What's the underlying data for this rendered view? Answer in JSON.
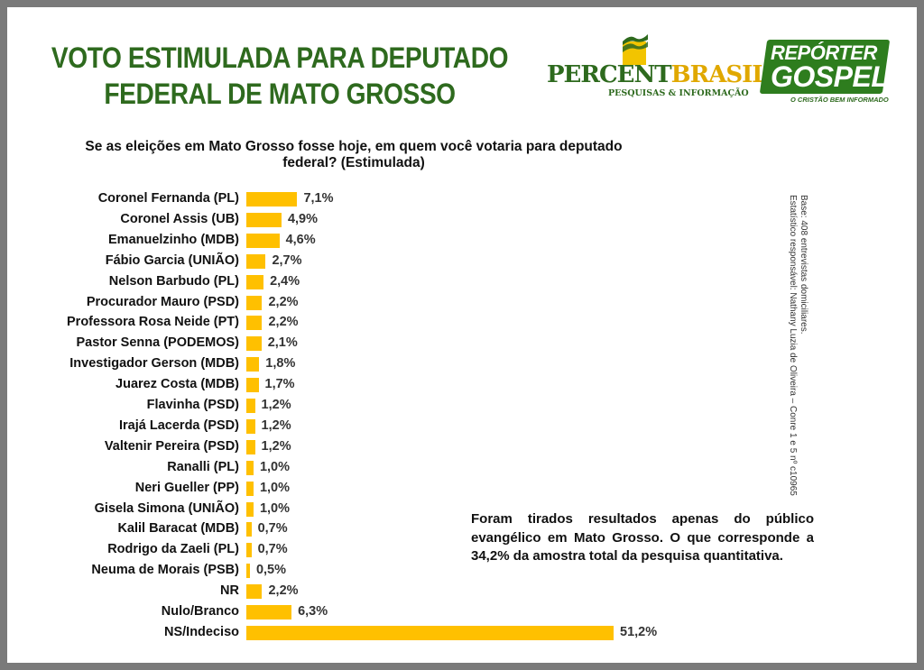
{
  "title": "VOTO ESTIMULADA PARA DEPUTADO FEDERAL DE MATO GROSSO",
  "logos": {
    "percent": {
      "name_green": "PERCENT",
      "name_yellow": "BRASIL",
      "reg": "®",
      "tagline": "PESQUISAS & INFORMAÇÃO"
    },
    "reporter": {
      "line1": "REPÓRTER",
      "line2": "GOSPEL",
      "tagline": "O CRISTÃO BEM INFORMADO"
    }
  },
  "note": "Foram tirados resultados apenas do público evangélico em Mato Grosso. O que corresponde a 34,2% da amostra total da pesquisa quantitativa.",
  "side_text": {
    "line1": "Base: 408 entrevistas domiciliares.",
    "line2": "Estatístico responsável: Nathany Luzia de Oliveira – Conre 1 e 5 nº c10965"
  },
  "colors": {
    "bar": "#ffc000",
    "title": "#2e6a1e"
  },
  "chart_data": {
    "type": "bar",
    "orientation": "horizontal",
    "title": "Se as eleições em Mato Grosso fosse hoje, em quem você votaria para deputado federal? (Estimulada)",
    "xlabel": "",
    "ylabel": "",
    "xlim": [
      0,
      51.2
    ],
    "categories": [
      "Coronel Fernanda (PL)",
      "Coronel Assis (UB)",
      "Emanuelzinho (MDB)",
      "Fábio Garcia (UNIÃO)",
      "Nelson Barbudo (PL)",
      "Procurador Mauro (PSD)",
      "Professora Rosa Neide (PT)",
      "Pastor Senna (PODEMOS)",
      "Investigador Gerson (MDB)",
      "Juarez Costa (MDB)",
      "Flavinha (PSD)",
      "Irajá Lacerda (PSD)",
      "Valtenir Pereira (PSD)",
      "Ranalli (PL)",
      "Neri Gueller (PP)",
      "Gisela Simona (UNIÃO)",
      "Kalil Baracat (MDB)",
      "Rodrigo da Zaeli (PL)",
      "Neuma de Morais (PSB)",
      "NR",
      "Nulo/Branco",
      "NS/Indeciso"
    ],
    "values": [
      7.1,
      4.9,
      4.6,
      2.7,
      2.4,
      2.2,
      2.2,
      2.1,
      1.8,
      1.7,
      1.2,
      1.2,
      1.2,
      1.0,
      1.0,
      1.0,
      0.7,
      0.7,
      0.5,
      2.2,
      6.3,
      51.2
    ],
    "value_labels": [
      "7,1%",
      "4,9%",
      "4,6%",
      "2,7%",
      "2,4%",
      "2,2%",
      "2,2%",
      "2,1%",
      "1,8%",
      "1,7%",
      "1,2%",
      "1,2%",
      "1,2%",
      "1,0%",
      "1,0%",
      "1,0%",
      "0,7%",
      "0,7%",
      "0,5%",
      "2,2%",
      "6,3%",
      "51,2%"
    ]
  }
}
